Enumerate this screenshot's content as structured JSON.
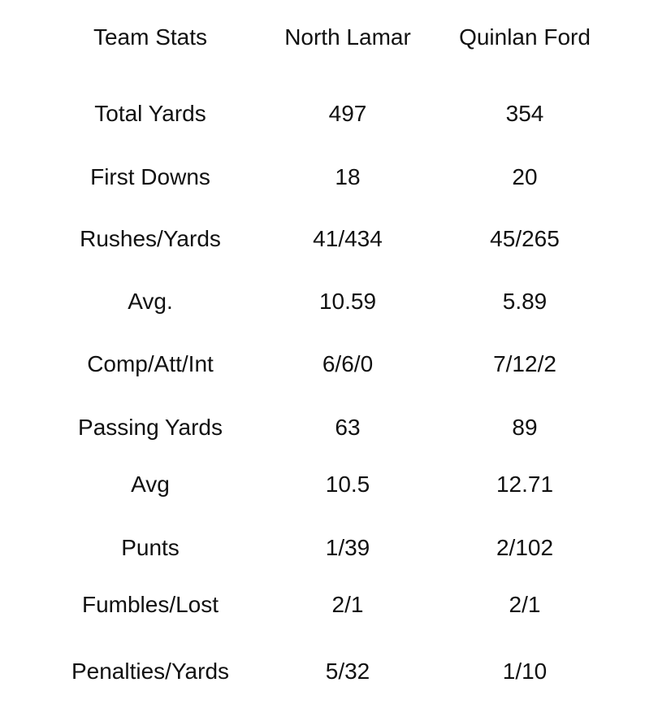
{
  "table": {
    "header": [
      "Team Stats",
      "North Lamar",
      "Quinlan Ford"
    ],
    "rows": [
      [
        "Total Yards",
        "497",
        "354"
      ],
      [
        "First Downs",
        "18",
        "20"
      ],
      [
        "Rushes/Yards",
        "41/434",
        "45/265"
      ],
      [
        "Avg.",
        "10.59",
        "5.89"
      ],
      [
        "Comp/Att/Int",
        "6/6/0",
        "7/12/2"
      ],
      [
        "Passing Yards",
        "63",
        "89"
      ],
      [
        "Avg",
        "10.5",
        "12.71"
      ],
      [
        "Punts",
        "1/39",
        "2/102"
      ],
      [
        "Fumbles/Lost",
        "2/1",
        "2/1"
      ],
      [
        "Penalties/Yards",
        "5/32",
        "1/10"
      ]
    ]
  }
}
